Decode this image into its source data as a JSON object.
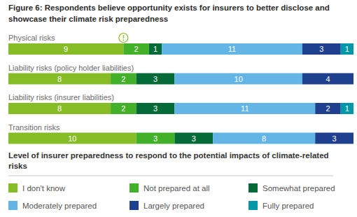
{
  "chart_data": {
    "type": "bar",
    "orientation": "horizontal",
    "stacked": true,
    "data_labels": true,
    "tick_labels": false,
    "legend": "bottom",
    "title": "Figure 6: Respondents believe opportunity exists for insurers to better disclose and showcase their climate risk preparedness",
    "subtitle": "Level of insurer preparedness to respond to the potential impacts of climate-related risks",
    "annotation": "!",
    "categories": [
      "Physical risks",
      "Liability risks (policy holder liabilities)",
      "Liability risks (insurer liabilities)",
      "Transition risks"
    ],
    "xlim": [
      0,
      27
    ],
    "series": [
      {
        "name": "I don't know",
        "color": "#86bc25",
        "values": [
          9,
          8,
          8,
          10
        ]
      },
      {
        "name": "Not prepared at all",
        "color": "#43b02a",
        "values": [
          2,
          2,
          2,
          3
        ]
      },
      {
        "name": "Somewhat prepared",
        "color": "#046a38",
        "values": [
          1,
          3,
          3,
          3
        ]
      },
      {
        "name": "Moderately prepared",
        "color": "#62b5e5",
        "values": [
          11,
          10,
          11,
          8
        ]
      },
      {
        "name": "Largely prepared",
        "color": "#1f3f8f",
        "values": [
          3,
          4,
          2,
          3
        ]
      },
      {
        "name": "Fully prepared",
        "color": "#0097a9",
        "values": [
          1,
          0,
          1,
          0
        ]
      }
    ]
  }
}
